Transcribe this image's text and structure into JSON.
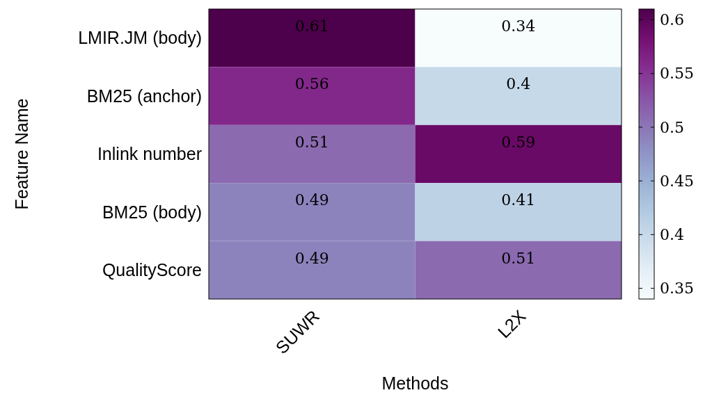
{
  "chart_data": {
    "type": "heatmap",
    "xlabel": "Methods",
    "ylabel": "Feature Name",
    "categories": [
      "SUWR",
      "L2X"
    ],
    "y_categories": [
      "LMIR.JM (body)",
      "BM25 (anchor)",
      "Inlink number",
      "BM25 (body)",
      "QualityScore"
    ],
    "cells": [
      [
        0.61,
        0.34
      ],
      [
        0.56,
        0.4
      ],
      [
        0.51,
        0.59
      ],
      [
        0.49,
        0.41
      ],
      [
        0.49,
        0.51
      ]
    ],
    "data_labels": true,
    "clim": [
      0.34,
      0.61
    ],
    "cticks": [
      0.35,
      0.4,
      0.45,
      0.5,
      0.55,
      0.6
    ]
  }
}
